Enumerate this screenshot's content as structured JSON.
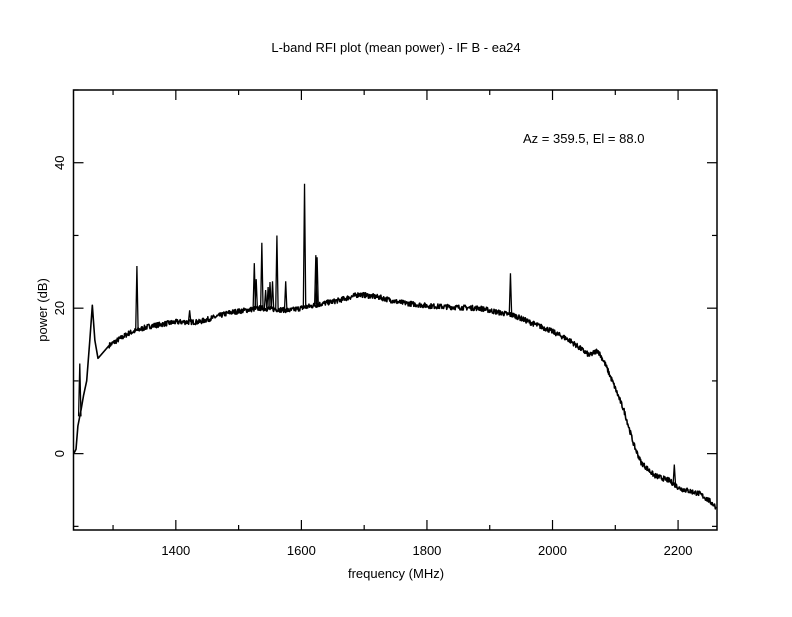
{
  "chart_data": {
    "type": "line",
    "title": "L-band RFI plot (mean power) - IF B - ea24",
    "annotation": "Az = 359.5, El = 88.0",
    "xlabel": "frequency (MHz)",
    "ylabel": "power (dB)",
    "xlim": [
      1237,
      2262
    ],
    "ylim": [
      -10.5,
      50
    ],
    "x_ticks": [
      1400,
      1600,
      1800,
      2000,
      2200
    ],
    "x_tick_labels": [
      "1400",
      "1600",
      "1800",
      "2000",
      "2200"
    ],
    "x_minor_step": 100,
    "y_ticks": [
      0,
      20,
      40
    ],
    "y_tick_labels": [
      "0",
      "20",
      "40"
    ],
    "y_minor_step": 10,
    "grid": false,
    "series": [
      {
        "name": "mean power",
        "color": "#000000",
        "x": [
          1238,
          1241,
          1244,
          1249,
          1253,
          1258,
          1263,
          1267,
          1271,
          1276,
          1294,
          1326,
          1357,
          1400,
          1437,
          1486,
          1534,
          1582,
          1621,
          1661,
          1692,
          1724,
          1756,
          1804,
          1852,
          1884,
          1915,
          1939,
          1963,
          1995,
          2027,
          2059,
          2072,
          2083,
          2098,
          2114,
          2130,
          2141,
          2162,
          2186,
          2203,
          2234,
          2250,
          2260
        ],
        "y": [
          0.1,
          0.6,
          3.8,
          6.0,
          8.0,
          10.0,
          15.6,
          20.4,
          15.6,
          13.1,
          14.9,
          16.6,
          17.5,
          18.1,
          18.1,
          19.4,
          20.0,
          19.7,
          20.4,
          21.1,
          21.9,
          21.5,
          20.8,
          20.3,
          20.1,
          20.0,
          19.4,
          19.0,
          18.1,
          17.0,
          15.6,
          13.5,
          14.2,
          12.5,
          9.4,
          5.9,
          1.1,
          -1.2,
          -3.0,
          -3.7,
          -4.8,
          -5.5,
          -6.5,
          -7.3
        ]
      }
    ],
    "spikes": {
      "x": [
        1247,
        1338,
        1422,
        1525,
        1528,
        1537,
        1543,
        1547,
        1550,
        1554,
        1561,
        1575,
        1605,
        1623,
        1625,
        1933,
        2194
      ],
      "y": [
        12.4,
        25.8,
        19.7,
        26.2,
        24.0,
        29.0,
        22.5,
        22.9,
        23.6,
        23.7,
        30.0,
        23.7,
        37.1,
        27.3,
        27.0,
        24.8,
        -1.5
      ]
    }
  }
}
